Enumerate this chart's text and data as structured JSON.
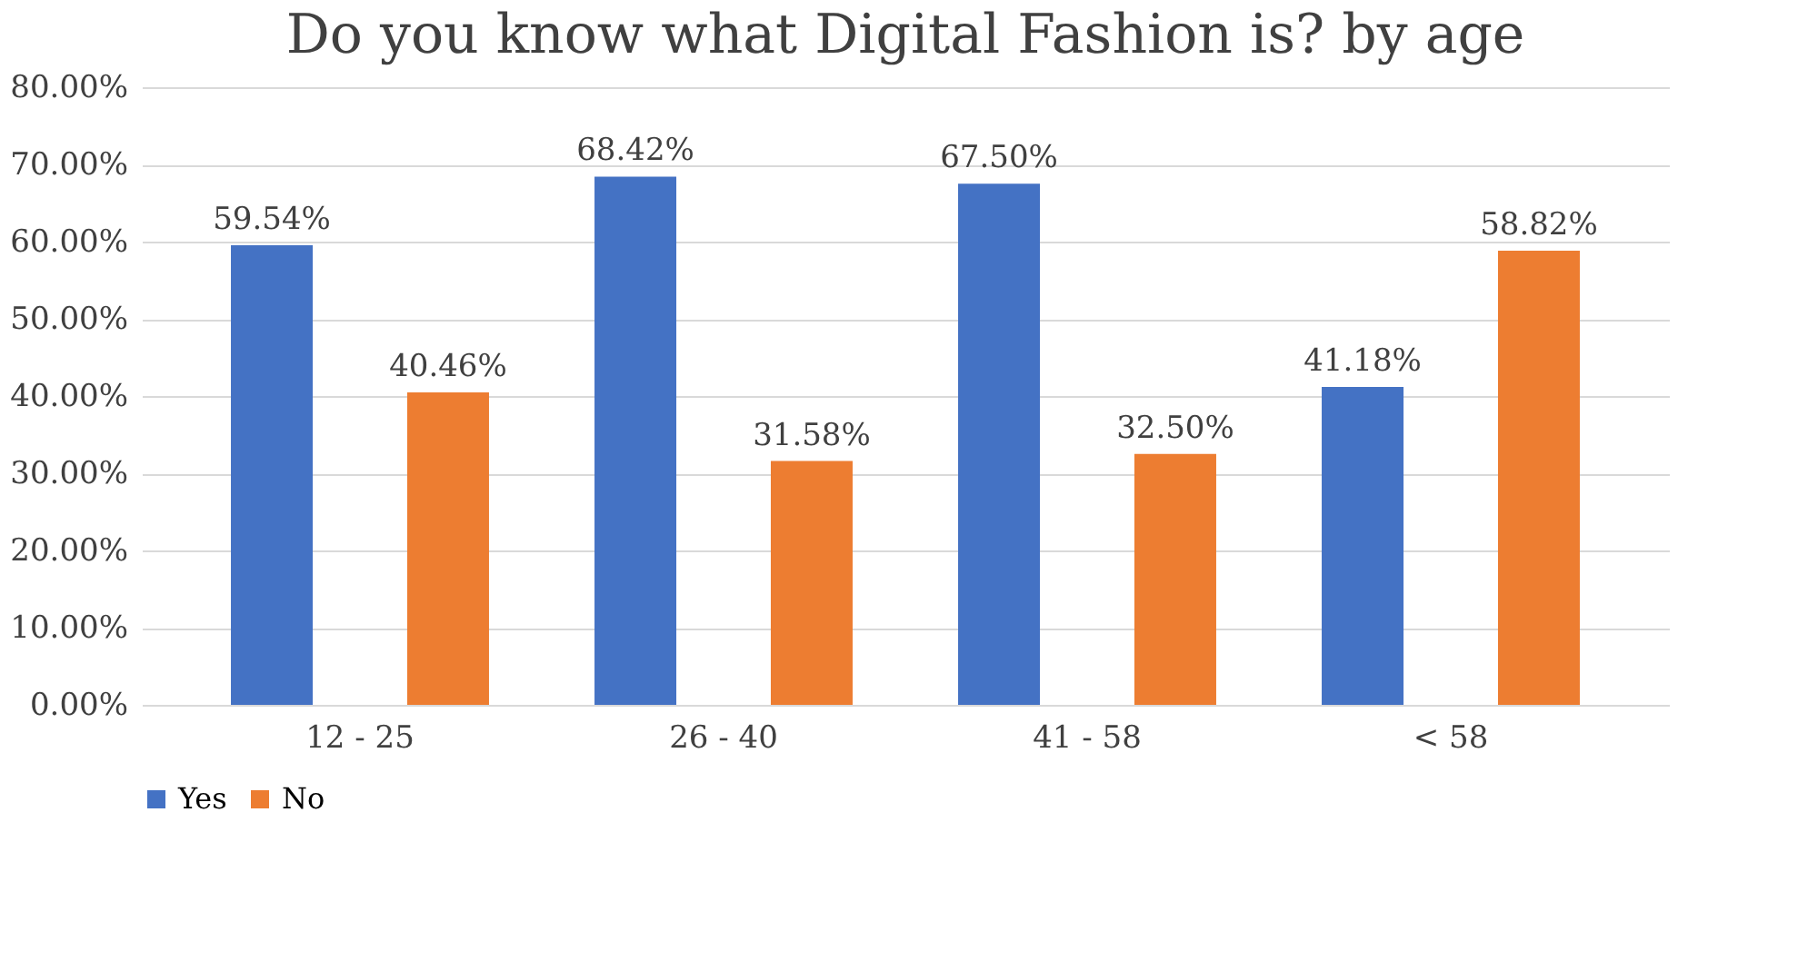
{
  "chart_data": {
    "type": "bar",
    "title": "Do you know what Digital Fashion is? by age",
    "categories": [
      "12 - 25",
      "26 - 40",
      "41 - 58",
      "< 58"
    ],
    "series": [
      {
        "name": "Yes",
        "color": "#4472c4",
        "values": [
          59.54,
          68.42,
          67.5,
          41.18
        ],
        "value_labels": [
          "59.54%",
          "68.42%",
          "67.50%",
          "41.18%"
        ]
      },
      {
        "name": "No",
        "color": "#ed7d31",
        "values": [
          40.46,
          31.58,
          32.5,
          58.82
        ],
        "value_labels": [
          "40.46%",
          "31.58%",
          "32.50%",
          "58.82%"
        ]
      }
    ],
    "ylim": [
      0,
      80
    ],
    "yticks": [
      {
        "value": 0,
        "label": "0.00%"
      },
      {
        "value": 10,
        "label": "10.00%"
      },
      {
        "value": 20,
        "label": "20.00%"
      },
      {
        "value": 30,
        "label": "30.00%"
      },
      {
        "value": 40,
        "label": "40.00%"
      },
      {
        "value": 50,
        "label": "50.00%"
      },
      {
        "value": 60,
        "label": "60.00%"
      },
      {
        "value": 70,
        "label": "70.00%"
      },
      {
        "value": 80,
        "label": "80.00%"
      }
    ],
    "grid": "y",
    "legend": "bottom"
  }
}
